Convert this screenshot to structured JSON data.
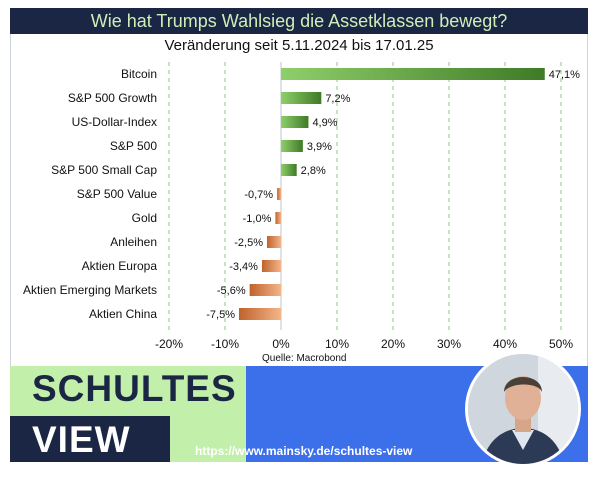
{
  "header": {
    "title": "Wie hat Trumps Wahlsieg die Assetklassen bewegt?",
    "subtitle": "Veränderung seit 5.11.2024 bis 17.01.25"
  },
  "chart_data": {
    "type": "bar",
    "orientation": "horizontal",
    "categories": [
      "Bitcoin",
      "S&P 500 Growth",
      "US-Dollar-Index",
      "S&P 500",
      "S&P 500 Small Cap",
      "S&P 500 Value",
      "Gold",
      "Anleihen",
      "Aktien Europa",
      "Aktien Emerging Markets",
      "Aktien China"
    ],
    "values": [
      47.1,
      7.2,
      4.9,
      3.9,
      2.8,
      -0.7,
      -1.0,
      -2.5,
      -3.4,
      -5.6,
      -7.5
    ],
    "value_labels": [
      "47,1%",
      "7,2%",
      "4,9%",
      "3,9%",
      "2,8%",
      "-0,7%",
      "-1,0%",
      "-2,5%",
      "-3,4%",
      "-5,6%",
      "-7,5%"
    ],
    "xlim": [
      -20,
      50
    ],
    "xticks": [
      -20,
      -10,
      0,
      10,
      20,
      30,
      40,
      50
    ],
    "xtick_labels": [
      "-20%",
      "-10%",
      "0%",
      "10%",
      "20%",
      "30%",
      "40%",
      "50%"
    ],
    "grid": true,
    "colors": {
      "positive": "#5e9a3a",
      "negative": "#d9824b",
      "grid": "#9fd68a"
    }
  },
  "source": "Quelle: Macrobond",
  "footer": {
    "brand_line1": "SCHULTES",
    "brand_line2": "VIEW",
    "url": "https://www.mainsky.de/schultes-view"
  }
}
